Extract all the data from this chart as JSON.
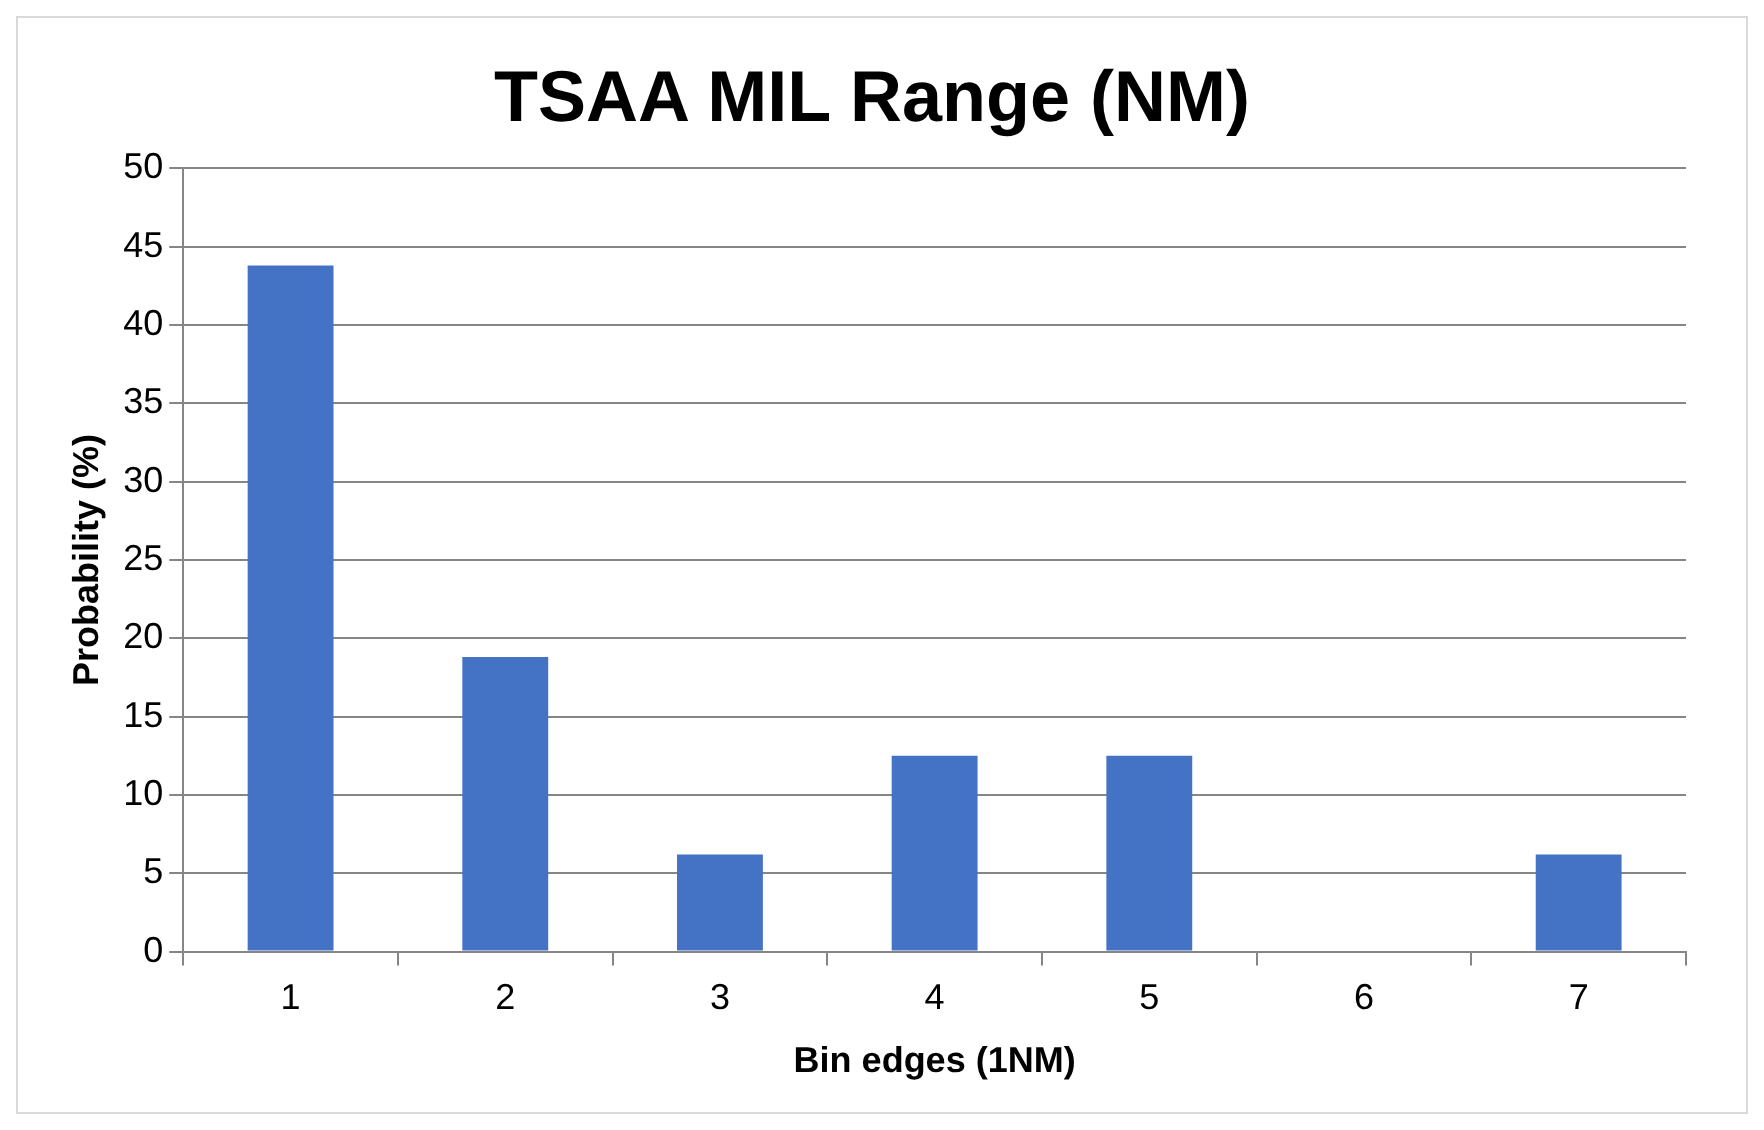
{
  "chart_data": {
    "type": "bar",
    "title": "TSAA MIL Range (NM)",
    "xlabel": "Bin edges (1NM)",
    "ylabel": "Probability (%)",
    "categories": [
      "1",
      "2",
      "3",
      "4",
      "5",
      "6",
      "7"
    ],
    "values": [
      43.8,
      18.8,
      6.2,
      12.5,
      12.5,
      0,
      6.2
    ],
    "color": "#4472c4",
    "ylim": [
      0,
      50
    ],
    "yticks": [
      0,
      5,
      10,
      15,
      20,
      25,
      30,
      35,
      40,
      45,
      50
    ],
    "grid": "y",
    "legend": false
  }
}
